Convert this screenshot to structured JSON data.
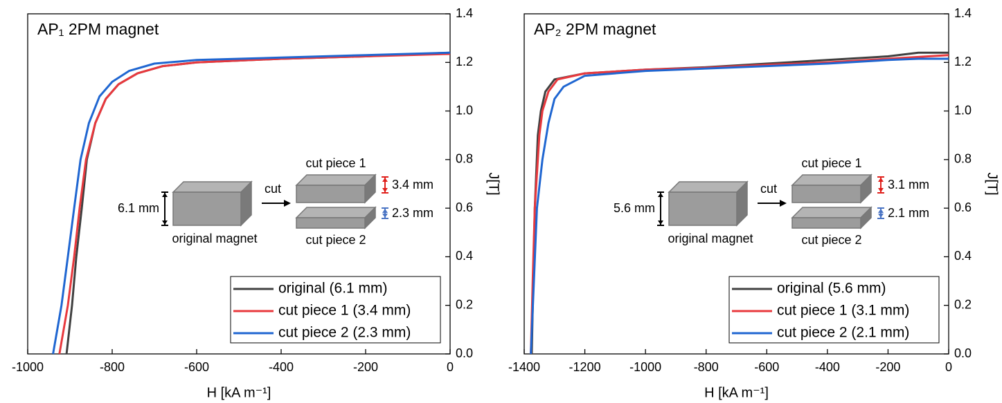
{
  "chart_data": [
    {
      "type": "line",
      "title": "AP₁ 2PM magnet",
      "x_label": "H [kA m⁻¹]",
      "y_label": "J[T]",
      "xlim": [
        -1000,
        0
      ],
      "xticks": [
        -1000,
        -800,
        -600,
        -400,
        -200,
        0
      ],
      "ylim": [
        0,
        1.4
      ],
      "yticks": [
        {
          "value": 0,
          "label": "0.0"
        },
        0.2,
        0.4,
        0.6,
        0.8,
        {
          "value": 1,
          "label": "1.0"
        },
        1.2,
        1.4
      ],
      "legend": "lower right",
      "annotations": {
        "height": "6.1 mm",
        "original": "original magnet",
        "cut": "cut",
        "piece1": "cut piece 1",
        "piece1_height": "3.4 mm",
        "piece1_color": "#e0201c",
        "piece2": "cut piece 2",
        "piece2_height": "2.3 mm",
        "piece2_color": "#4a74c4"
      },
      "series": [
        {
          "name": "original (6.1 mm)",
          "color": "#404040",
          "x": [
            -908,
            -895,
            -885,
            -872,
            -860,
            -840,
            -815,
            -785,
            -740,
            -680,
            -600,
            -400,
            -200,
            0
          ],
          "values": [
            0,
            0.2,
            0.4,
            0.6,
            0.8,
            0.95,
            1.05,
            1.11,
            1.155,
            1.185,
            1.2,
            1.215,
            1.225,
            1.24
          ]
        },
        {
          "name": "cut piece 1 (3.4 mm)",
          "color": "#e8383d",
          "x": [
            -925,
            -905,
            -890,
            -877,
            -862,
            -840,
            -815,
            -785,
            -740,
            -680,
            -600,
            -400,
            -200,
            0
          ],
          "values": [
            0,
            0.2,
            0.4,
            0.6,
            0.8,
            0.95,
            1.05,
            1.11,
            1.155,
            1.185,
            1.2,
            1.215,
            1.225,
            1.235
          ]
        },
        {
          "name": "cut piece 2 (2.3 mm)",
          "color": "#1f66d1",
          "x": [
            -940,
            -920,
            -905,
            -890,
            -875,
            -855,
            -830,
            -800,
            -760,
            -700,
            -600,
            -400,
            -200,
            0
          ],
          "values": [
            0,
            0.2,
            0.4,
            0.6,
            0.8,
            0.95,
            1.06,
            1.12,
            1.165,
            1.195,
            1.21,
            1.22,
            1.23,
            1.24
          ]
        }
      ]
    },
    {
      "type": "line",
      "title": "AP₂ 2PM magnet",
      "x_label": "H [kA m⁻¹]",
      "y_label": "J[T]",
      "xlim": [
        -1400,
        0
      ],
      "xticks": [
        -1400,
        -1200,
        -1000,
        -800,
        -600,
        -400,
        -200,
        0
      ],
      "ylim": [
        0,
        1.4
      ],
      "yticks": [
        {
          "value": 0,
          "label": "0.0"
        },
        0.2,
        0.4,
        0.6,
        0.8,
        {
          "value": 1,
          "label": "1.0"
        },
        1.2,
        1.4
      ],
      "legend": "lower right",
      "annotations": {
        "height": "5.6 mm",
        "original": "original magnet",
        "cut": "cut",
        "piece1": "cut piece 1",
        "piece1_height": "3.1 mm",
        "piece1_color": "#e0201c",
        "piece2": "cut piece 2",
        "piece2_height": "2.1 mm",
        "piece2_color": "#4a74c4"
      },
      "series": [
        {
          "name": "original (5.6 mm)",
          "color": "#404040",
          "x": [
            -1375,
            -1370,
            -1365,
            -1355,
            -1345,
            -1330,
            -1300,
            -1200,
            -1000,
            -800,
            -600,
            -400,
            -200,
            -100,
            0
          ],
          "values": [
            0,
            0.3,
            0.6,
            0.9,
            1.0,
            1.08,
            1.13,
            1.155,
            1.17,
            1.18,
            1.195,
            1.21,
            1.225,
            1.24,
            1.24
          ]
        },
        {
          "name": "cut piece 1 (3.1 mm)",
          "color": "#e8383d",
          "x": [
            -1378,
            -1372,
            -1365,
            -1350,
            -1340,
            -1320,
            -1290,
            -1200,
            -1000,
            -800,
            -600,
            -400,
            -200,
            0
          ],
          "values": [
            0,
            0.3,
            0.6,
            0.9,
            1.0,
            1.08,
            1.13,
            1.155,
            1.17,
            1.178,
            1.19,
            1.2,
            1.215,
            1.23
          ]
        },
        {
          "name": "cut piece 2 (2.1 mm)",
          "color": "#1f66d1",
          "x": [
            -1378,
            -1368,
            -1358,
            -1340,
            -1320,
            -1300,
            -1270,
            -1200,
            -1000,
            -800,
            -600,
            -400,
            -200,
            -100,
            0
          ],
          "values": [
            0,
            0.3,
            0.6,
            0.8,
            0.95,
            1.05,
            1.1,
            1.145,
            1.165,
            1.175,
            1.185,
            1.195,
            1.21,
            1.215,
            1.215
          ]
        }
      ]
    }
  ]
}
